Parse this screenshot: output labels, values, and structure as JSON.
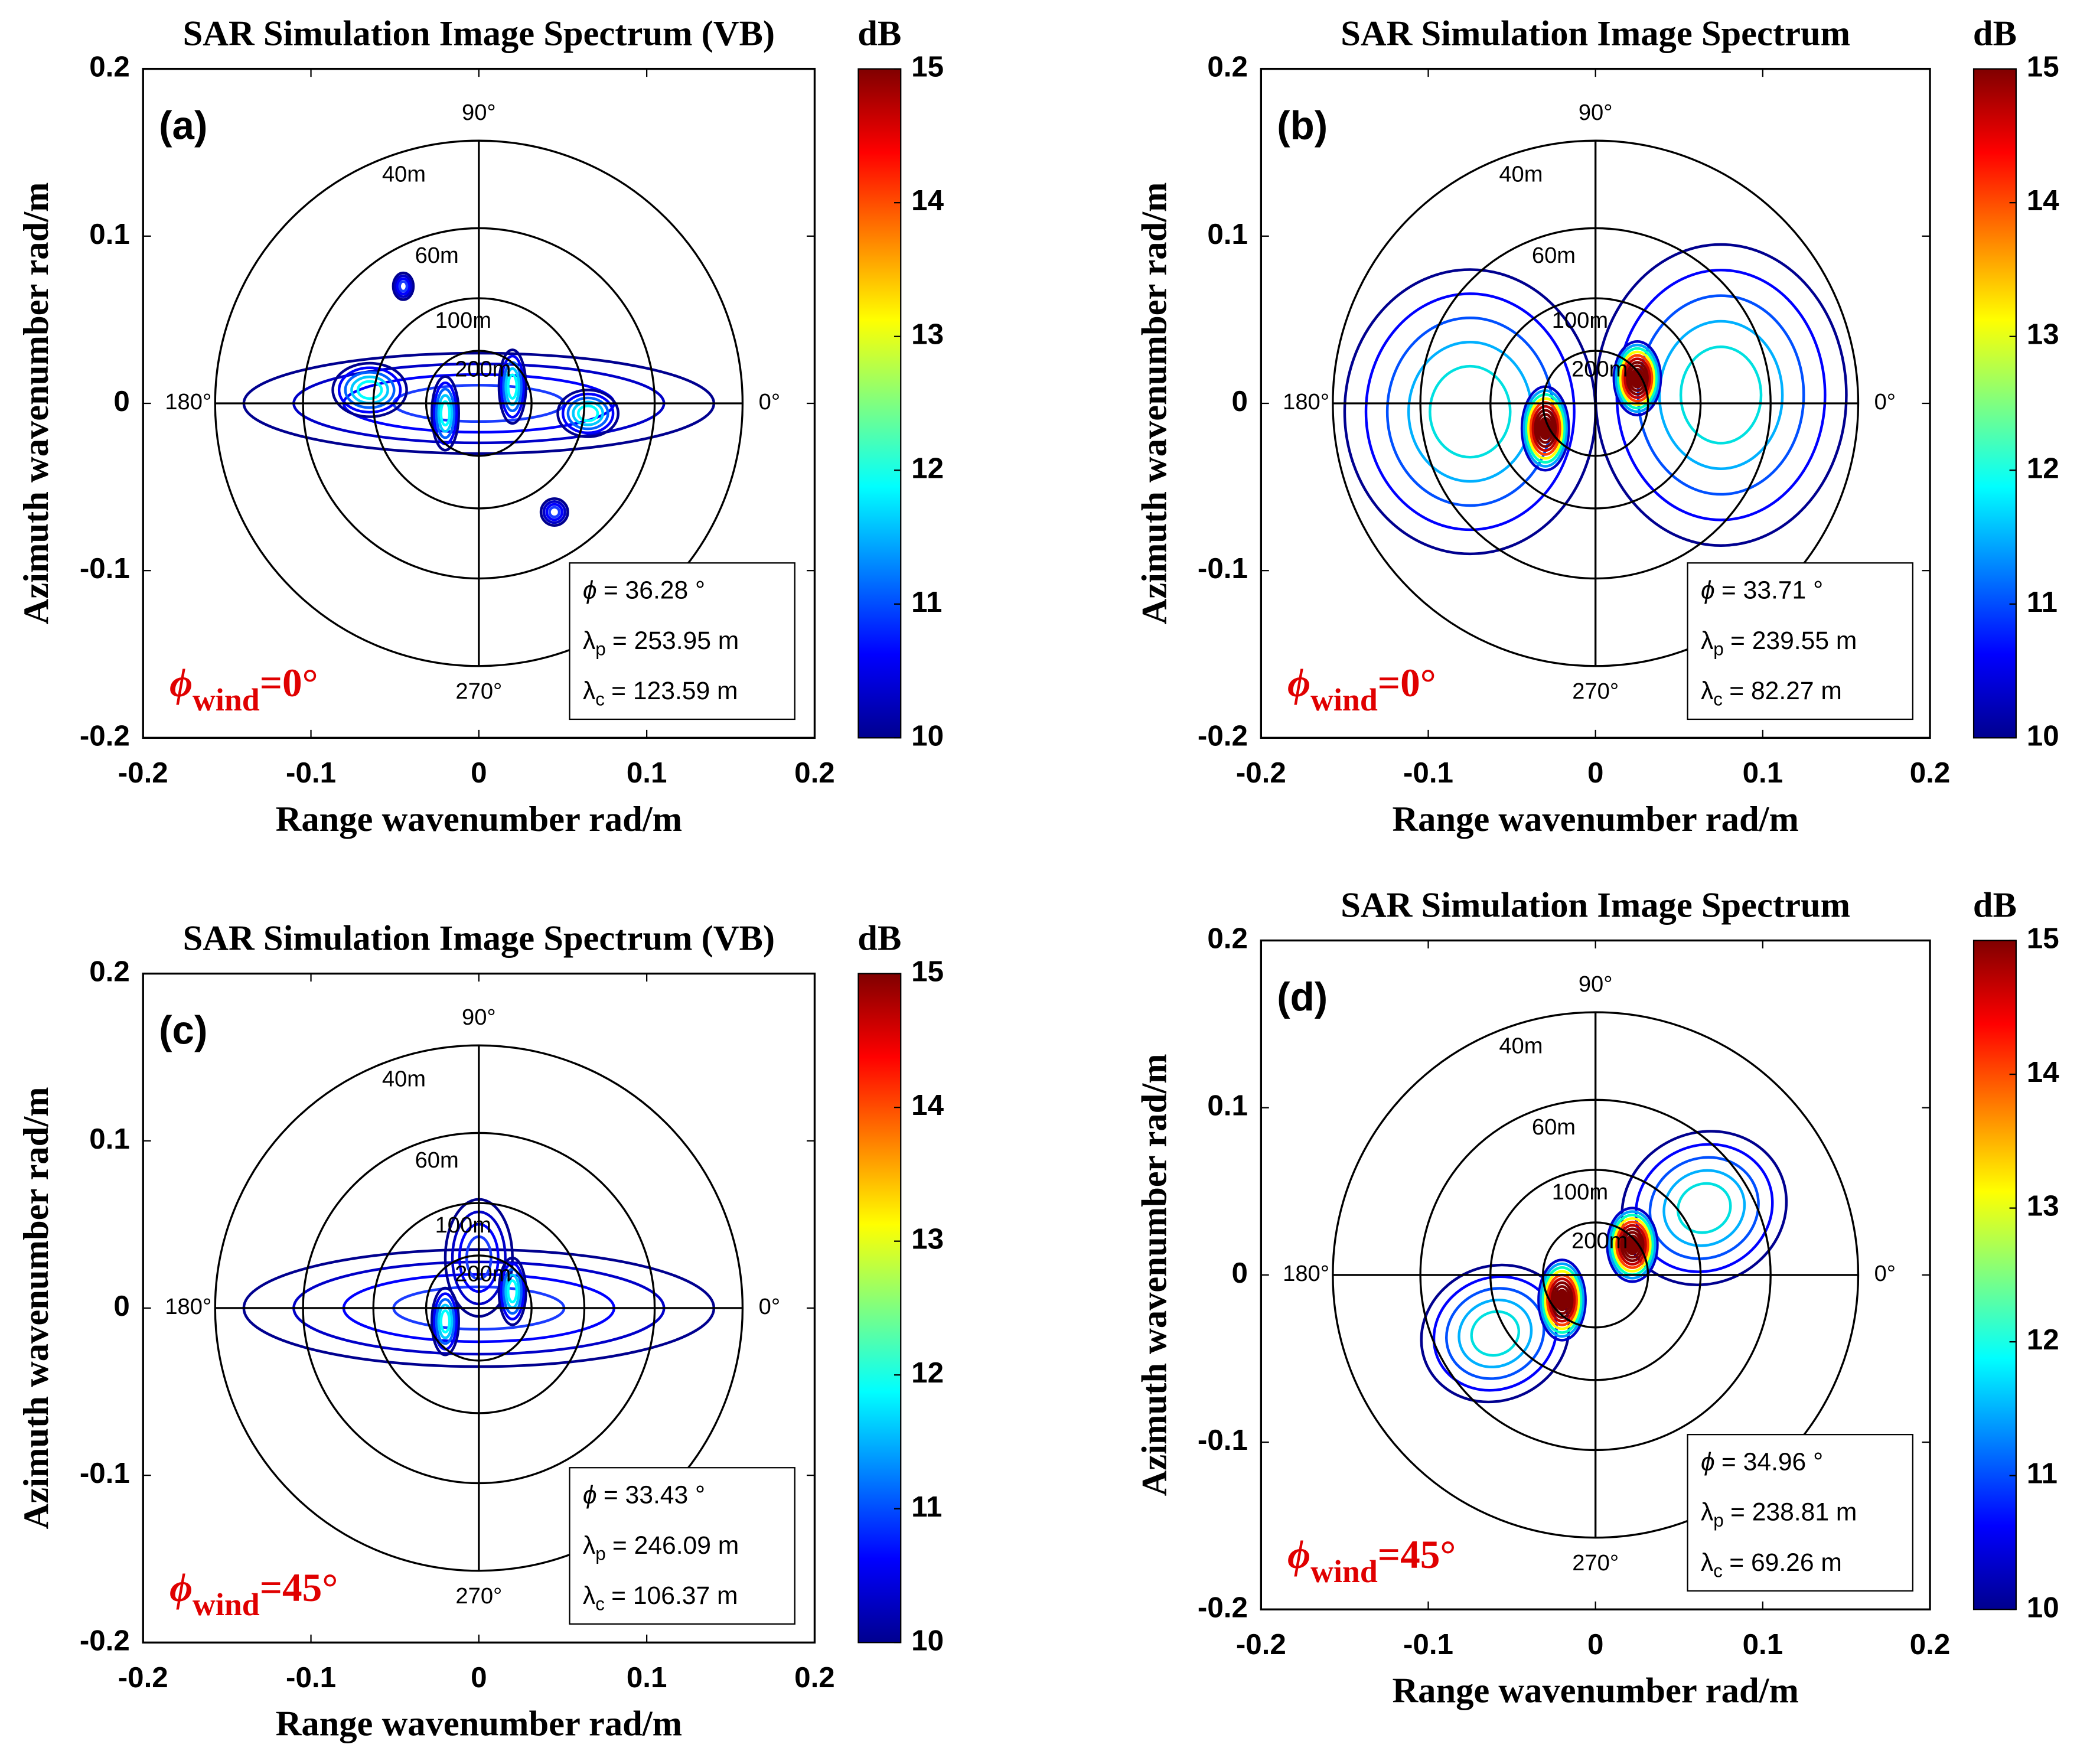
{
  "chart_data": [
    {
      "type": "contour",
      "title": "SAR Simulation Image Spectrum (VB)",
      "panel_label": "(a)",
      "x_label": "Range wavenumber rad/m",
      "y_label": "Azimuth wavenumber rad/m",
      "xlim": [
        -0.2,
        0.2
      ],
      "ylim": [
        -0.2,
        0.2
      ],
      "xticks": [
        -0.2,
        -0.1,
        0,
        0.1,
        0.2
      ],
      "yticks": [
        -0.2,
        -0.1,
        0,
        0.1,
        0.2
      ],
      "colorbar": {
        "label": "dB",
        "clim": [
          10,
          15
        ],
        "ticks": [
          10,
          11,
          12,
          13,
          14,
          15
        ],
        "colormap": "jet"
      },
      "rings": [
        {
          "value": 40,
          "label": "40m"
        },
        {
          "value": 60,
          "label": "60m"
        },
        {
          "value": 100,
          "label": "100m"
        },
        {
          "value": 200,
          "label": "200m"
        }
      ],
      "angle_labels": [
        {
          "value": 90,
          "label": "90°"
        },
        {
          "value": 180,
          "label": "180°"
        },
        {
          "value": 270,
          "label": "270°"
        },
        {
          "value": 0,
          "label": "0°"
        }
      ],
      "params": [
        {
          "symbol": "ϕ",
          "text": "= 36.28 °"
        },
        {
          "symbol": "λ",
          "sub": "p",
          "text": "= 253.95 m"
        },
        {
          "symbol": "λ",
          "sub": "c",
          "text": "= 123.59 m"
        }
      ],
      "wind": {
        "symbol": "ϕ",
        "sub": "wind",
        "text": "=0°"
      }
    },
    {
      "type": "contour",
      "title": "SAR Simulation Image Spectrum",
      "panel_label": "(b)",
      "x_label": "Range wavenumber rad/m",
      "y_label": "Azimuth wavenumber rad/m",
      "xlim": [
        -0.2,
        0.2
      ],
      "ylim": [
        -0.2,
        0.2
      ],
      "xticks": [
        -0.2,
        -0.1,
        0,
        0.1,
        0.2
      ],
      "yticks": [
        -0.2,
        -0.1,
        0,
        0.1,
        0.2
      ],
      "colorbar": {
        "label": "dB",
        "clim": [
          10,
          15
        ],
        "ticks": [
          10,
          11,
          12,
          13,
          14,
          15
        ],
        "colormap": "jet"
      },
      "rings": [
        {
          "value": 40,
          "label": "40m"
        },
        {
          "value": 60,
          "label": "60m"
        },
        {
          "value": 100,
          "label": "100m"
        },
        {
          "value": 200,
          "label": "200m"
        }
      ],
      "angle_labels": [
        {
          "value": 90,
          "label": "90°"
        },
        {
          "value": 180,
          "label": "180°"
        },
        {
          "value": 270,
          "label": "270°"
        },
        {
          "value": 0,
          "label": "0°"
        }
      ],
      "params": [
        {
          "symbol": "ϕ",
          "text": "= 33.71 °"
        },
        {
          "symbol": "λ",
          "sub": "p",
          "text": "= 239.55 m"
        },
        {
          "symbol": "λ",
          "sub": "c",
          "text": "= 82.27 m"
        }
      ],
      "wind": {
        "symbol": "ϕ",
        "sub": "wind",
        "text": "=0°"
      }
    },
    {
      "type": "contour",
      "title": "SAR Simulation Image Spectrum (VB)",
      "panel_label": "(c)",
      "x_label": "Range wavenumber rad/m",
      "y_label": "Azimuth wavenumber rad/m",
      "xlim": [
        -0.2,
        0.2
      ],
      "ylim": [
        -0.2,
        0.2
      ],
      "xticks": [
        -0.2,
        -0.1,
        0,
        0.1,
        0.2
      ],
      "yticks": [
        -0.2,
        -0.1,
        0,
        0.1,
        0.2
      ],
      "colorbar": {
        "label": "dB",
        "clim": [
          10,
          15
        ],
        "ticks": [
          10,
          11,
          12,
          13,
          14,
          15
        ],
        "colormap": "jet"
      },
      "rings": [
        {
          "value": 40,
          "label": "40m"
        },
        {
          "value": 60,
          "label": "60m"
        },
        {
          "value": 100,
          "label": "100m"
        },
        {
          "value": 200,
          "label": "200m"
        }
      ],
      "angle_labels": [
        {
          "value": 90,
          "label": "90°"
        },
        {
          "value": 180,
          "label": "180°"
        },
        {
          "value": 270,
          "label": "270°"
        },
        {
          "value": 0,
          "label": "0°"
        }
      ],
      "params": [
        {
          "symbol": "ϕ",
          "text": "= 33.43 °"
        },
        {
          "symbol": "λ",
          "sub": "p",
          "text": "= 246.09 m"
        },
        {
          "symbol": "λ",
          "sub": "c",
          "text": "= 106.37 m"
        }
      ],
      "wind": {
        "symbol": "ϕ",
        "sub": "wind",
        "text": "=45°"
      }
    },
    {
      "type": "contour",
      "title": "SAR Simulation Image Spectrum",
      "panel_label": "(d)",
      "x_label": "Range wavenumber rad/m",
      "y_label": "Azimuth wavenumber rad/m",
      "xlim": [
        -0.2,
        0.2
      ],
      "ylim": [
        -0.2,
        0.2
      ],
      "xticks": [
        -0.2,
        -0.1,
        0,
        0.1,
        0.2
      ],
      "yticks": [
        -0.2,
        -0.1,
        0,
        0.1,
        0.2
      ],
      "colorbar": {
        "label": "dB",
        "clim": [
          10,
          15
        ],
        "ticks": [
          10,
          11,
          12,
          13,
          14,
          15
        ],
        "colormap": "jet"
      },
      "rings": [
        {
          "value": 40,
          "label": "40m"
        },
        {
          "value": 60,
          "label": "60m"
        },
        {
          "value": 100,
          "label": "100m"
        },
        {
          "value": 200,
          "label": "200m"
        }
      ],
      "angle_labels": [
        {
          "value": 90,
          "label": "90°"
        },
        {
          "value": 180,
          "label": "180°"
        },
        {
          "value": 270,
          "label": "270°"
        },
        {
          "value": 0,
          "label": "0°"
        }
      ],
      "params": [
        {
          "symbol": "ϕ",
          "text": "= 34.96 °"
        },
        {
          "symbol": "λ",
          "sub": "p",
          "text": "= 238.81 m"
        },
        {
          "symbol": "λ",
          "sub": "c",
          "text": "= 69.26 m"
        }
      ],
      "wind": {
        "symbol": "ϕ",
        "sub": "wind",
        "text": "=45°"
      }
    }
  ]
}
